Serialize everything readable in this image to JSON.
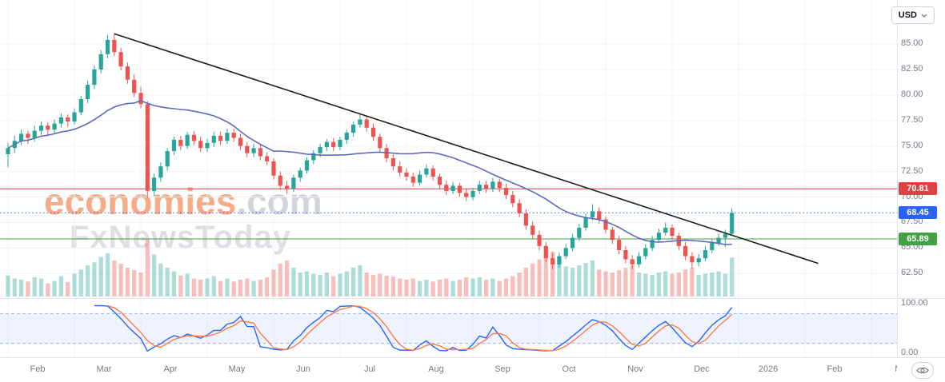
{
  "meta": {
    "currency_label": "USD"
  },
  "watermark": {
    "line1_main": "economies",
    "line1_suffix": ".com",
    "line2": "FxNewsToday"
  },
  "chart_data": {
    "type": "candlestick",
    "title": "",
    "currency": "USD",
    "x_categories": [
      "Feb",
      "Mar",
      "Apr",
      "May",
      "Jun",
      "Jul",
      "Aug",
      "Sep",
      "Oct",
      "Nov",
      "Dec",
      "2026",
      "Feb",
      "Ma"
    ],
    "y_ticks": [
      85,
      82.5,
      80,
      77.5,
      75,
      72.5,
      70,
      67.5,
      65,
      62.5
    ],
    "candles_per_month": 10,
    "candles_ohlcv": [
      [
        74.2,
        75.3,
        72.9,
        74.8,
        35
      ],
      [
        74.8,
        76.0,
        74.3,
        75.5,
        30
      ],
      [
        75.5,
        76.6,
        75.1,
        76.2,
        28
      ],
      [
        76.2,
        76.5,
        75.2,
        75.8,
        25
      ],
      [
        75.8,
        77.0,
        75.4,
        76.5,
        32
      ],
      [
        76.5,
        77.4,
        76.1,
        77.0,
        30
      ],
      [
        77.0,
        77.3,
        76.1,
        76.6,
        22
      ],
      [
        76.6,
        77.6,
        76.2,
        77.2,
        26
      ],
      [
        77.2,
        78.2,
        76.8,
        77.8,
        34
      ],
      [
        77.8,
        78.1,
        76.9,
        77.4,
        24
      ],
      [
        77.4,
        78.7,
        77.1,
        78.3,
        38
      ],
      [
        78.3,
        79.9,
        78.0,
        79.6,
        45
      ],
      [
        79.6,
        81.4,
        79.2,
        81.0,
        52
      ],
      [
        81.0,
        82.9,
        80.6,
        82.5,
        57
      ],
      [
        82.5,
        84.4,
        82.1,
        84.0,
        66
      ],
      [
        84.0,
        85.9,
        83.6,
        85.4,
        72
      ],
      [
        85.4,
        86.0,
        83.8,
        84.2,
        60
      ],
      [
        84.2,
        84.6,
        82.4,
        82.8,
        55
      ],
      [
        82.8,
        83.2,
        81.1,
        81.5,
        48
      ],
      [
        81.5,
        82.0,
        79.8,
        80.2,
        44
      ],
      [
        80.2,
        80.8,
        78.7,
        79.1,
        40
      ],
      [
        79.1,
        79.4,
        69.9,
        70.6,
        95
      ],
      [
        70.6,
        72.3,
        70.1,
        71.9,
        70
      ],
      [
        71.9,
        73.4,
        71.5,
        73.0,
        55
      ],
      [
        73.0,
        74.8,
        72.6,
        74.5,
        48
      ],
      [
        74.5,
        75.9,
        74.1,
        75.6,
        42
      ],
      [
        75.6,
        76.0,
        74.6,
        75.0,
        35
      ],
      [
        75.0,
        76.4,
        74.7,
        76.1,
        38
      ],
      [
        76.1,
        76.5,
        75.1,
        75.5,
        30
      ],
      [
        75.5,
        75.9,
        74.4,
        74.8,
        28
      ],
      [
        74.8,
        75.7,
        74.4,
        75.3,
        30
      ],
      [
        75.3,
        76.4,
        74.9,
        76.0,
        34
      ],
      [
        76.0,
        76.4,
        75.1,
        75.5,
        26
      ],
      [
        75.5,
        76.7,
        75.2,
        76.3,
        30
      ],
      [
        76.3,
        76.7,
        75.4,
        75.8,
        25
      ],
      [
        75.8,
        76.2,
        74.6,
        75.0,
        28
      ],
      [
        75.0,
        75.4,
        73.9,
        74.3,
        30
      ],
      [
        74.3,
        75.2,
        73.9,
        74.8,
        26
      ],
      [
        74.8,
        75.1,
        73.6,
        74.0,
        28
      ],
      [
        74.0,
        74.4,
        73.1,
        73.5,
        32
      ],
      [
        73.5,
        73.8,
        71.7,
        72.1,
        45
      ],
      [
        72.1,
        72.5,
        70.7,
        71.1,
        55
      ],
      [
        71.1,
        71.6,
        70.3,
        70.8,
        60
      ],
      [
        70.8,
        72.2,
        70.5,
        71.9,
        48
      ],
      [
        71.9,
        72.9,
        71.5,
        72.6,
        40
      ],
      [
        72.6,
        73.9,
        72.3,
        73.6,
        42
      ],
      [
        73.6,
        74.6,
        73.2,
        74.3,
        38
      ],
      [
        74.3,
        75.2,
        73.9,
        74.9,
        36
      ],
      [
        74.9,
        75.7,
        74.5,
        75.4,
        40
      ],
      [
        75.4,
        75.8,
        74.5,
        74.9,
        34
      ],
      [
        74.9,
        75.9,
        74.6,
        75.6,
        38
      ],
      [
        75.6,
        76.6,
        75.2,
        76.3,
        42
      ],
      [
        76.3,
        77.4,
        75.9,
        77.1,
        48
      ],
      [
        77.1,
        78.2,
        76.8,
        77.6,
        52
      ],
      [
        77.6,
        78.0,
        76.4,
        76.8,
        40
      ],
      [
        76.8,
        77.2,
        75.5,
        75.9,
        36
      ],
      [
        75.9,
        76.2,
        74.4,
        74.8,
        38
      ],
      [
        74.8,
        75.2,
        73.4,
        73.8,
        35
      ],
      [
        73.8,
        74.2,
        72.6,
        73.0,
        33
      ],
      [
        73.0,
        73.5,
        72.0,
        72.4,
        30
      ],
      [
        72.4,
        72.8,
        71.6,
        72.0,
        28
      ],
      [
        72.0,
        72.4,
        71.0,
        71.4,
        30
      ],
      [
        71.4,
        72.6,
        71.1,
        72.2,
        26
      ],
      [
        72.2,
        73.2,
        71.9,
        72.8,
        28
      ],
      [
        72.8,
        73.1,
        71.6,
        72.0,
        25
      ],
      [
        72.0,
        72.3,
        70.8,
        71.2,
        28
      ],
      [
        71.2,
        71.6,
        70.2,
        70.6,
        30
      ],
      [
        70.6,
        71.5,
        70.3,
        71.1,
        26
      ],
      [
        71.1,
        71.4,
        70.0,
        70.4,
        28
      ],
      [
        70.4,
        70.8,
        69.6,
        70.0,
        32
      ],
      [
        70.0,
        70.9,
        69.7,
        70.6,
        30
      ],
      [
        70.6,
        71.6,
        70.3,
        71.2,
        32
      ],
      [
        71.2,
        71.6,
        70.4,
        70.8,
        28
      ],
      [
        70.8,
        71.9,
        70.5,
        71.5,
        30
      ],
      [
        71.5,
        71.8,
        70.5,
        70.9,
        26
      ],
      [
        70.9,
        71.3,
        69.8,
        70.2,
        30
      ],
      [
        70.2,
        70.6,
        69.0,
        69.4,
        34
      ],
      [
        69.4,
        69.8,
        68.0,
        68.4,
        40
      ],
      [
        68.4,
        68.8,
        66.8,
        67.2,
        48
      ],
      [
        67.2,
        67.6,
        65.9,
        66.3,
        55
      ],
      [
        66.3,
        66.7,
        64.8,
        65.2,
        62
      ],
      [
        65.2,
        65.6,
        63.6,
        64.0,
        68
      ],
      [
        64.0,
        64.5,
        62.9,
        63.4,
        75
      ],
      [
        63.4,
        64.6,
        63.1,
        64.2,
        58
      ],
      [
        64.2,
        65.4,
        63.9,
        65.0,
        50
      ],
      [
        65.0,
        66.4,
        64.7,
        66.0,
        48
      ],
      [
        66.0,
        67.4,
        65.7,
        67.0,
        52
      ],
      [
        67.0,
        68.4,
        66.7,
        68.0,
        56
      ],
      [
        68.0,
        69.3,
        67.7,
        68.6,
        60
      ],
      [
        68.6,
        69.0,
        67.4,
        67.8,
        45
      ],
      [
        67.8,
        68.1,
        66.4,
        66.8,
        42
      ],
      [
        66.8,
        67.1,
        65.4,
        65.8,
        40
      ],
      [
        65.8,
        66.2,
        64.4,
        64.8,
        44
      ],
      [
        64.8,
        65.2,
        63.5,
        63.9,
        48
      ],
      [
        63.9,
        64.3,
        62.9,
        63.4,
        52
      ],
      [
        63.4,
        64.6,
        63.1,
        64.2,
        40
      ],
      [
        64.2,
        65.4,
        63.9,
        65.0,
        38
      ],
      [
        65.0,
        66.2,
        64.7,
        65.8,
        36
      ],
      [
        65.8,
        66.9,
        65.5,
        66.5,
        40
      ],
      [
        66.5,
        67.5,
        66.2,
        67.0,
        42
      ],
      [
        67.0,
        67.3,
        65.8,
        66.2,
        38
      ],
      [
        66.2,
        66.5,
        64.8,
        65.2,
        40
      ],
      [
        65.2,
        65.6,
        63.8,
        64.2,
        45
      ],
      [
        64.2,
        64.6,
        63.0,
        63.6,
        48
      ],
      [
        63.6,
        64.4,
        63.2,
        64.0,
        36
      ],
      [
        64.0,
        65.2,
        63.7,
        64.8,
        38
      ],
      [
        64.8,
        65.9,
        64.5,
        65.5,
        40
      ],
      [
        65.5,
        66.4,
        65.2,
        66.0,
        42
      ],
      [
        66.0,
        66.8,
        65.1,
        66.4,
        38
      ],
      [
        66.4,
        68.9,
        66.2,
        68.45,
        65
      ]
    ],
    "colors": {
      "up": "#26a69a",
      "down": "#ef5350",
      "vol_up": "rgba(38,166,154,0.38)",
      "vol_down": "rgba(239,83,80,0.38)",
      "sma": "#5c6bc0",
      "trend": "#1c1c1c",
      "grid": "#f0f3fa",
      "axis_text": "#787b86"
    },
    "overlays": {
      "sma_period": 20,
      "trendline": {
        "from_index": 16,
        "from_price": 86.0,
        "to_index": 122,
        "to_price": 63.5
      },
      "levels": [
        {
          "label": "70.81",
          "price": 70.81,
          "color": "#e0403f",
          "style": "solid"
        },
        {
          "label": "68.45",
          "price": 68.45,
          "color": "#2962ff",
          "style": "dotted"
        },
        {
          "label": "65.89",
          "price": 65.89,
          "color": "#43a047",
          "style": "solid"
        }
      ]
    },
    "indicator": {
      "name": "stochastic",
      "k_period": 14,
      "d_period": 3,
      "k_color": "#2962ff",
      "d_color": "#ff7a45",
      "bands": [
        80,
        20
      ],
      "band_fill": "rgba(41,98,255,0.08)",
      "y_ticks": [
        100,
        0
      ]
    }
  }
}
